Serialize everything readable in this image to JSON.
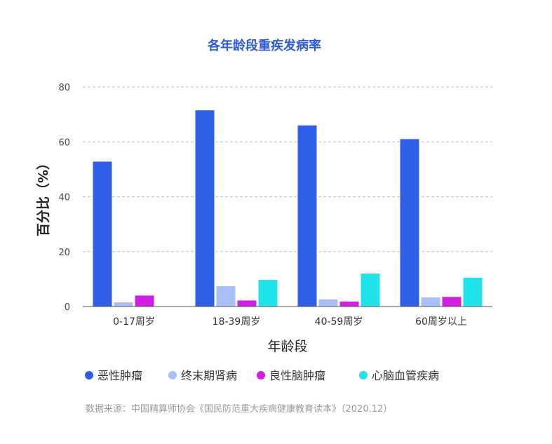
{
  "chart_data": {
    "type": "bar",
    "title": "各年龄段重疾发病率",
    "xlabel": "年龄段",
    "ylabel": "百分比（%）",
    "ylim": [
      0,
      80
    ],
    "yticks": [
      0,
      20,
      40,
      60,
      80
    ],
    "grid": true,
    "legend_position": "bottom",
    "categories": [
      "0-17周岁",
      "18-39周岁",
      "40-59周岁",
      "60周岁以上"
    ],
    "series": [
      {
        "name": "恶性肿瘤",
        "color": "#2f5fe9",
        "values": [
          52.8,
          71.5,
          66,
          61
        ]
      },
      {
        "name": "终末期肾病",
        "color": "#a9bff7",
        "values": [
          1.5,
          7.4,
          2.6,
          3.3
        ]
      },
      {
        "name": "良性脑肿瘤",
        "color": "#d21ee3",
        "values": [
          4.0,
          2.2,
          1.8,
          3.5
        ]
      },
      {
        "name": "心脑血管疾病",
        "color": "#1ee3ea",
        "values": [
          0,
          9.7,
          12,
          10.5
        ]
      }
    ],
    "source": "数据来源：中国精算师协会《国民防范重大疾病健康教育读本》（2020.12）"
  }
}
